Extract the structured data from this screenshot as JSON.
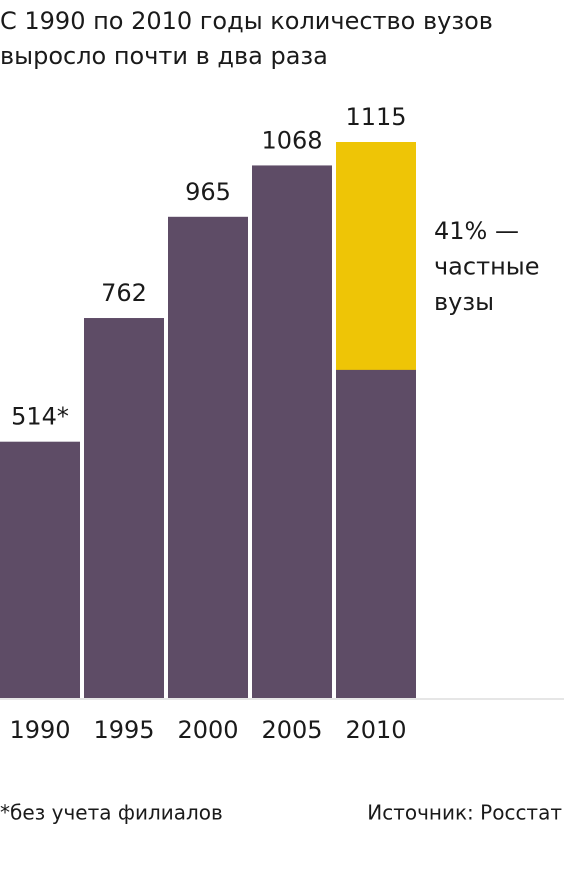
{
  "chart_data": {
    "type": "bar",
    "title": [
      "С 1990 по 2010 годы количество вузов",
      "выросло почти в два раза"
    ],
    "categories": [
      "1990",
      "1995",
      "2000",
      "2005",
      "2010"
    ],
    "values": [
      514,
      762,
      965,
      1068,
      1115
    ],
    "value_labels": [
      "514*",
      "762",
      "965",
      "1068",
      "1115"
    ],
    "color": "#5e4c66",
    "private": {
      "values": [
        null,
        null,
        null,
        null,
        457
      ],
      "color": "#eec506",
      "annotation": [
        "41% —",
        "частные",
        "вузы"
      ]
    },
    "ylim": [
      0,
      1115
    ],
    "footnote": "*без учета филиалов",
    "source": "Источник: Росстат"
  }
}
